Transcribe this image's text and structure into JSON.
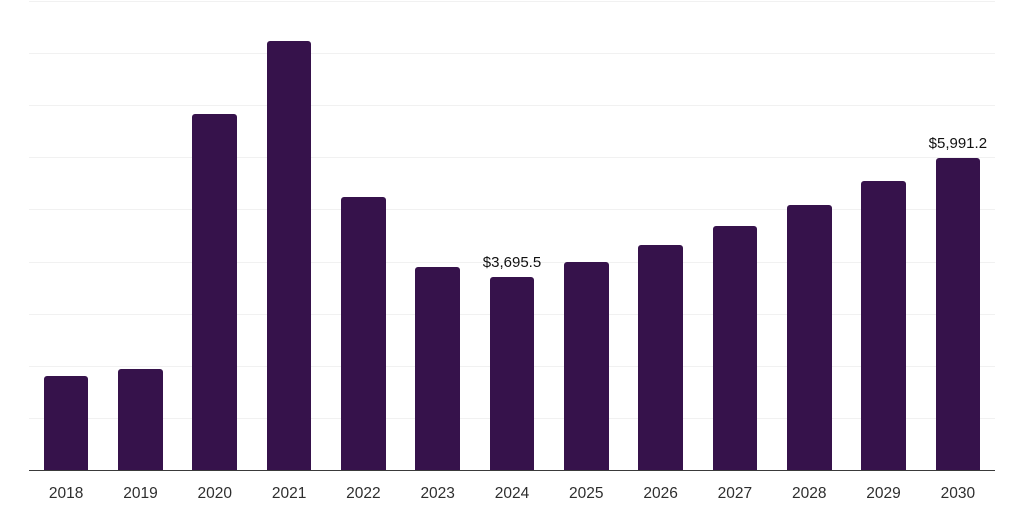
{
  "chart_data": {
    "type": "bar",
    "title": "",
    "xlabel": "",
    "ylabel": "",
    "categories": [
      "2018",
      "2019",
      "2020",
      "2021",
      "2022",
      "2023",
      "2024",
      "2025",
      "2026",
      "2027",
      "2028",
      "2029",
      "2030"
    ],
    "values": [
      1805,
      1940,
      6830,
      8240,
      5230,
      3900,
      3695.5,
      3990,
      4310,
      4690,
      5090,
      5540,
      5991.2
    ],
    "bar_labels": [
      "",
      "",
      "",
      "",
      "",
      "",
      "$3,695.5",
      "",
      "",
      "",
      "",
      "",
      "$5,991.2"
    ],
    "ylim": [
      0,
      9000
    ],
    "gridline_step": 1000,
    "grid": "horizontal",
    "legend": "none",
    "colors": {
      "bar": "#36124B",
      "gridline": "#f1f1f1",
      "axis_line": "#3a3a3a",
      "tick_label": "#2e2e2e",
      "value_label": "#111111",
      "background": "#ffffff"
    }
  }
}
